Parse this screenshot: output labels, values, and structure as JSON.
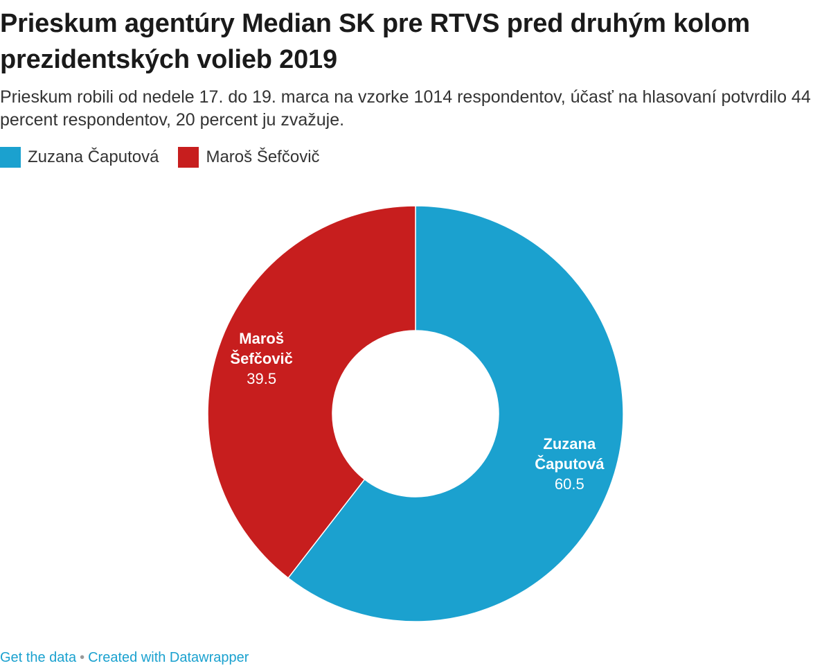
{
  "header": {
    "title": "Prieskum agentúry Median SK pre RTVS pred druhým kolom prezidentských volieb 2019",
    "subtitle": "Prieskum robili od nedele 17. do 19. marca na vzorke 1014 respondentov, účasť na hlasovaní potvrdilo 44 percent respondentov, 20 percent ju zvažuje."
  },
  "legend": [
    {
      "label": "Zuzana Čaputová",
      "color": "#1ba1cf"
    },
    {
      "label": "Maroš Šefčovič",
      "color": "#c71e1e"
    }
  ],
  "chart_data": {
    "type": "pie",
    "variant": "donut",
    "title": "Prieskum agentúry Median SK pre RTVS pred druhým kolom prezidentských volieb 2019",
    "slices": [
      {
        "label_lines": [
          "Zuzana",
          "Čaputová"
        ],
        "value": 60.5,
        "value_text": "60.5",
        "color": "#1ba1cf"
      },
      {
        "label_lines": [
          "Maroš",
          "Šefčovič"
        ],
        "value": 39.5,
        "value_text": "39.5",
        "color": "#c71e1e"
      }
    ]
  },
  "footer": {
    "get_data": "Get the data",
    "separator": "•",
    "created_with": "Created with Datawrapper"
  }
}
